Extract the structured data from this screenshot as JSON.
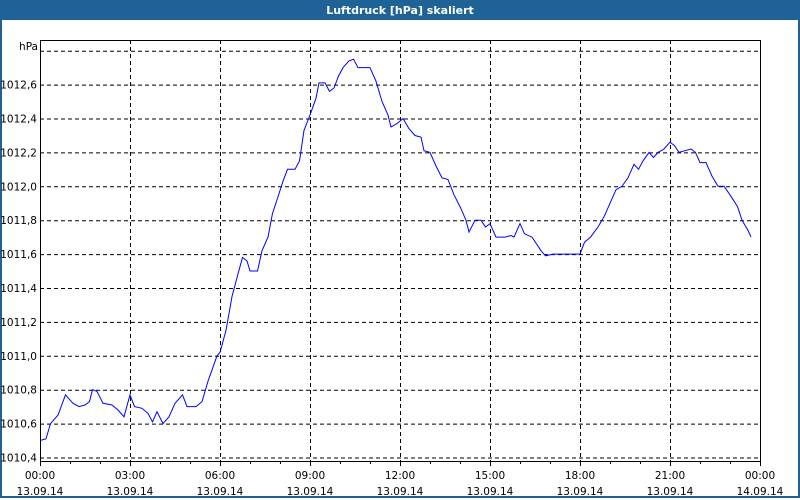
{
  "window": {
    "title": "Luftdruck [hPa] skaliert"
  },
  "chart_data": {
    "type": "line",
    "title": "Luftdruck [hPa] skaliert",
    "ylabel": "hPa",
    "xlabel": "",
    "ylim": [
      1010.4,
      1012.8
    ],
    "xlim_hours": [
      0,
      24
    ],
    "grid": true,
    "line_color": "#0000ff",
    "y_ticks": [
      {
        "value": 1010.4,
        "label": "1010,4"
      },
      {
        "value": 1010.6,
        "label": "1010,6"
      },
      {
        "value": 1010.8,
        "label": "1010,8"
      },
      {
        "value": 1011.0,
        "label": "1011,0"
      },
      {
        "value": 1011.2,
        "label": "1011,2"
      },
      {
        "value": 1011.4,
        "label": "1011,4"
      },
      {
        "value": 1011.6,
        "label": "1011,6"
      },
      {
        "value": 1011.8,
        "label": "1011,8"
      },
      {
        "value": 1012.0,
        "label": "1012,0"
      },
      {
        "value": 1012.2,
        "label": "1012,2"
      },
      {
        "value": 1012.4,
        "label": "1012,4"
      },
      {
        "value": 1012.6,
        "label": "1012,6"
      }
    ],
    "x_ticks": [
      {
        "hour": 0,
        "time": "00:00",
        "date": "13.09.14"
      },
      {
        "hour": 3,
        "time": "03:00",
        "date": "13.09.14"
      },
      {
        "hour": 6,
        "time": "06:00",
        "date": "13.09.14"
      },
      {
        "hour": 9,
        "time": "09:00",
        "date": "13.09.14"
      },
      {
        "hour": 12,
        "time": "12:00",
        "date": "13.09.14"
      },
      {
        "hour": 15,
        "time": "15:00",
        "date": "13.09.14"
      },
      {
        "hour": 18,
        "time": "18:00",
        "date": "13.09.14"
      },
      {
        "hour": 21,
        "time": "21:00",
        "date": "13.09.14"
      },
      {
        "hour": 24,
        "time": "00:00",
        "date": "14.09.14"
      }
    ],
    "series": [
      {
        "x": [
          0,
          0.2,
          0.35,
          0.6,
          0.85,
          1.1,
          1.3,
          1.5,
          1.65,
          1.75,
          1.9,
          2.1,
          2.4,
          2.6,
          2.8,
          3.0,
          3.15,
          3.4,
          3.6,
          3.75,
          3.9,
          4.1,
          4.3,
          4.5,
          4.75,
          4.9,
          5.2,
          5.4,
          5.6,
          5.9,
          6.0,
          6.2,
          6.4,
          6.55,
          6.75,
          6.9,
          7.0,
          7.25,
          7.4,
          7.6,
          7.75,
          7.9,
          8.1,
          8.25,
          8.5,
          8.65,
          8.8,
          9.0,
          9.2,
          9.3,
          9.5,
          9.65,
          9.8,
          9.95,
          10.1,
          10.3,
          10.45,
          10.6,
          10.8,
          11.0,
          11.2,
          11.4,
          11.6,
          11.7,
          11.9,
          12.1,
          12.3,
          12.5,
          12.7,
          12.8,
          13.0,
          13.2,
          13.4,
          13.6,
          13.8,
          14.0,
          14.2,
          14.3,
          14.5,
          14.7,
          14.85,
          15.0,
          15.2,
          15.5,
          15.7,
          15.8,
          16.0,
          16.15,
          16.4,
          16.7,
          16.85,
          17.1,
          17.5,
          17.8,
          18.0,
          18.15,
          18.35,
          18.6,
          18.8,
          19.0,
          19.2,
          19.4,
          19.6,
          19.8,
          19.95,
          20.1,
          20.3,
          20.45,
          20.6,
          20.8,
          21.0,
          21.15,
          21.3,
          21.5,
          21.7,
          21.85,
          22.0,
          22.2,
          22.4,
          22.6,
          22.8,
          23.0,
          23.25,
          23.4,
          23.6,
          23.7
        ],
        "y": [
          1010.5,
          1010.51,
          1010.6,
          1010.65,
          1010.77,
          1010.72,
          1010.7,
          1010.71,
          1010.73,
          1010.8,
          1010.79,
          1010.72,
          1010.71,
          1010.68,
          1010.64,
          1010.77,
          1010.7,
          1010.69,
          1010.66,
          1010.61,
          1010.67,
          1010.6,
          1010.64,
          1010.72,
          1010.77,
          1010.7,
          1010.7,
          1010.73,
          1010.85,
          1011.0,
          1011.02,
          1011.15,
          1011.35,
          1011.45,
          1011.58,
          1011.56,
          1011.5,
          1011.5,
          1011.62,
          1011.7,
          1011.84,
          1011.92,
          1012.03,
          1012.1,
          1012.1,
          1012.15,
          1012.33,
          1012.42,
          1012.52,
          1012.61,
          1012.61,
          1012.56,
          1012.58,
          1012.65,
          1012.7,
          1012.74,
          1012.75,
          1012.7,
          1012.7,
          1012.7,
          1012.62,
          1012.5,
          1012.42,
          1012.35,
          1012.37,
          1012.4,
          1012.34,
          1012.3,
          1012.29,
          1012.21,
          1012.2,
          1012.12,
          1012.05,
          1012.04,
          1011.95,
          1011.88,
          1011.8,
          1011.73,
          1011.8,
          1011.8,
          1011.76,
          1011.78,
          1011.7,
          1011.7,
          1011.71,
          1011.7,
          1011.78,
          1011.72,
          1011.7,
          1011.62,
          1011.59,
          1011.6,
          1011.6,
          1011.6,
          1011.6,
          1011.67,
          1011.7,
          1011.76,
          1011.82,
          1011.9,
          1011.98,
          1012.0,
          1012.05,
          1012.13,
          1012.1,
          1012.15,
          1012.2,
          1012.17,
          1012.2,
          1012.22,
          1012.26,
          1012.24,
          1012.2,
          1012.21,
          1012.22,
          1012.2,
          1012.14,
          1012.14,
          1012.06,
          1012.0,
          1012.0,
          1011.95,
          1011.88,
          1011.8,
          1011.74,
          1011.7
        ]
      }
    ]
  }
}
